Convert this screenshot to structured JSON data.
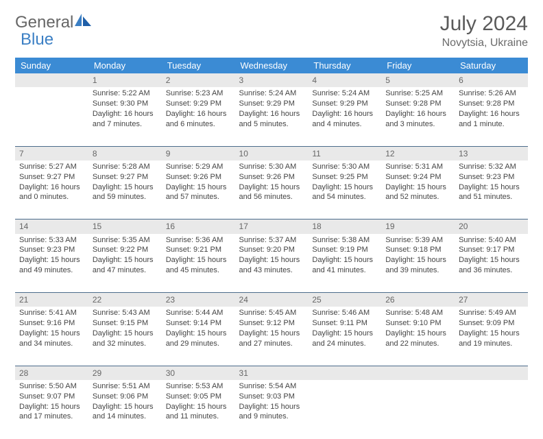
{
  "brand": {
    "part1": "General",
    "part2": "Blue"
  },
  "title": "July 2024",
  "location": "Novytsia, Ukraine",
  "columns": [
    "Sunday",
    "Monday",
    "Tuesday",
    "Wednesday",
    "Thursday",
    "Friday",
    "Saturday"
  ],
  "colors": {
    "header_bg": "#3b8bd4",
    "header_text": "#ffffff",
    "daynum_bg": "#e9e9e9",
    "row_border": "#4a6a8a",
    "brand_gray": "#666666",
    "brand_blue": "#3b7fc4"
  },
  "weeks": [
    [
      null,
      {
        "n": "1",
        "sunrise": "Sunrise: 5:22 AM",
        "sunset": "Sunset: 9:30 PM",
        "dl1": "Daylight: 16 hours",
        "dl2": "and 7 minutes."
      },
      {
        "n": "2",
        "sunrise": "Sunrise: 5:23 AM",
        "sunset": "Sunset: 9:29 PM",
        "dl1": "Daylight: 16 hours",
        "dl2": "and 6 minutes."
      },
      {
        "n": "3",
        "sunrise": "Sunrise: 5:24 AM",
        "sunset": "Sunset: 9:29 PM",
        "dl1": "Daylight: 16 hours",
        "dl2": "and 5 minutes."
      },
      {
        "n": "4",
        "sunrise": "Sunrise: 5:24 AM",
        "sunset": "Sunset: 9:29 PM",
        "dl1": "Daylight: 16 hours",
        "dl2": "and 4 minutes."
      },
      {
        "n": "5",
        "sunrise": "Sunrise: 5:25 AM",
        "sunset": "Sunset: 9:28 PM",
        "dl1": "Daylight: 16 hours",
        "dl2": "and 3 minutes."
      },
      {
        "n": "6",
        "sunrise": "Sunrise: 5:26 AM",
        "sunset": "Sunset: 9:28 PM",
        "dl1": "Daylight: 16 hours",
        "dl2": "and 1 minute."
      }
    ],
    [
      {
        "n": "7",
        "sunrise": "Sunrise: 5:27 AM",
        "sunset": "Sunset: 9:27 PM",
        "dl1": "Daylight: 16 hours",
        "dl2": "and 0 minutes."
      },
      {
        "n": "8",
        "sunrise": "Sunrise: 5:28 AM",
        "sunset": "Sunset: 9:27 PM",
        "dl1": "Daylight: 15 hours",
        "dl2": "and 59 minutes."
      },
      {
        "n": "9",
        "sunrise": "Sunrise: 5:29 AM",
        "sunset": "Sunset: 9:26 PM",
        "dl1": "Daylight: 15 hours",
        "dl2": "and 57 minutes."
      },
      {
        "n": "10",
        "sunrise": "Sunrise: 5:30 AM",
        "sunset": "Sunset: 9:26 PM",
        "dl1": "Daylight: 15 hours",
        "dl2": "and 56 minutes."
      },
      {
        "n": "11",
        "sunrise": "Sunrise: 5:30 AM",
        "sunset": "Sunset: 9:25 PM",
        "dl1": "Daylight: 15 hours",
        "dl2": "and 54 minutes."
      },
      {
        "n": "12",
        "sunrise": "Sunrise: 5:31 AM",
        "sunset": "Sunset: 9:24 PM",
        "dl1": "Daylight: 15 hours",
        "dl2": "and 52 minutes."
      },
      {
        "n": "13",
        "sunrise": "Sunrise: 5:32 AM",
        "sunset": "Sunset: 9:23 PM",
        "dl1": "Daylight: 15 hours",
        "dl2": "and 51 minutes."
      }
    ],
    [
      {
        "n": "14",
        "sunrise": "Sunrise: 5:33 AM",
        "sunset": "Sunset: 9:23 PM",
        "dl1": "Daylight: 15 hours",
        "dl2": "and 49 minutes."
      },
      {
        "n": "15",
        "sunrise": "Sunrise: 5:35 AM",
        "sunset": "Sunset: 9:22 PM",
        "dl1": "Daylight: 15 hours",
        "dl2": "and 47 minutes."
      },
      {
        "n": "16",
        "sunrise": "Sunrise: 5:36 AM",
        "sunset": "Sunset: 9:21 PM",
        "dl1": "Daylight: 15 hours",
        "dl2": "and 45 minutes."
      },
      {
        "n": "17",
        "sunrise": "Sunrise: 5:37 AM",
        "sunset": "Sunset: 9:20 PM",
        "dl1": "Daylight: 15 hours",
        "dl2": "and 43 minutes."
      },
      {
        "n": "18",
        "sunrise": "Sunrise: 5:38 AM",
        "sunset": "Sunset: 9:19 PM",
        "dl1": "Daylight: 15 hours",
        "dl2": "and 41 minutes."
      },
      {
        "n": "19",
        "sunrise": "Sunrise: 5:39 AM",
        "sunset": "Sunset: 9:18 PM",
        "dl1": "Daylight: 15 hours",
        "dl2": "and 39 minutes."
      },
      {
        "n": "20",
        "sunrise": "Sunrise: 5:40 AM",
        "sunset": "Sunset: 9:17 PM",
        "dl1": "Daylight: 15 hours",
        "dl2": "and 36 minutes."
      }
    ],
    [
      {
        "n": "21",
        "sunrise": "Sunrise: 5:41 AM",
        "sunset": "Sunset: 9:16 PM",
        "dl1": "Daylight: 15 hours",
        "dl2": "and 34 minutes."
      },
      {
        "n": "22",
        "sunrise": "Sunrise: 5:43 AM",
        "sunset": "Sunset: 9:15 PM",
        "dl1": "Daylight: 15 hours",
        "dl2": "and 32 minutes."
      },
      {
        "n": "23",
        "sunrise": "Sunrise: 5:44 AM",
        "sunset": "Sunset: 9:14 PM",
        "dl1": "Daylight: 15 hours",
        "dl2": "and 29 minutes."
      },
      {
        "n": "24",
        "sunrise": "Sunrise: 5:45 AM",
        "sunset": "Sunset: 9:12 PM",
        "dl1": "Daylight: 15 hours",
        "dl2": "and 27 minutes."
      },
      {
        "n": "25",
        "sunrise": "Sunrise: 5:46 AM",
        "sunset": "Sunset: 9:11 PM",
        "dl1": "Daylight: 15 hours",
        "dl2": "and 24 minutes."
      },
      {
        "n": "26",
        "sunrise": "Sunrise: 5:48 AM",
        "sunset": "Sunset: 9:10 PM",
        "dl1": "Daylight: 15 hours",
        "dl2": "and 22 minutes."
      },
      {
        "n": "27",
        "sunrise": "Sunrise: 5:49 AM",
        "sunset": "Sunset: 9:09 PM",
        "dl1": "Daylight: 15 hours",
        "dl2": "and 19 minutes."
      }
    ],
    [
      {
        "n": "28",
        "sunrise": "Sunrise: 5:50 AM",
        "sunset": "Sunset: 9:07 PM",
        "dl1": "Daylight: 15 hours",
        "dl2": "and 17 minutes."
      },
      {
        "n": "29",
        "sunrise": "Sunrise: 5:51 AM",
        "sunset": "Sunset: 9:06 PM",
        "dl1": "Daylight: 15 hours",
        "dl2": "and 14 minutes."
      },
      {
        "n": "30",
        "sunrise": "Sunrise: 5:53 AM",
        "sunset": "Sunset: 9:05 PM",
        "dl1": "Daylight: 15 hours",
        "dl2": "and 11 minutes."
      },
      {
        "n": "31",
        "sunrise": "Sunrise: 5:54 AM",
        "sunset": "Sunset: 9:03 PM",
        "dl1": "Daylight: 15 hours",
        "dl2": "and 9 minutes."
      },
      null,
      null,
      null
    ]
  ]
}
